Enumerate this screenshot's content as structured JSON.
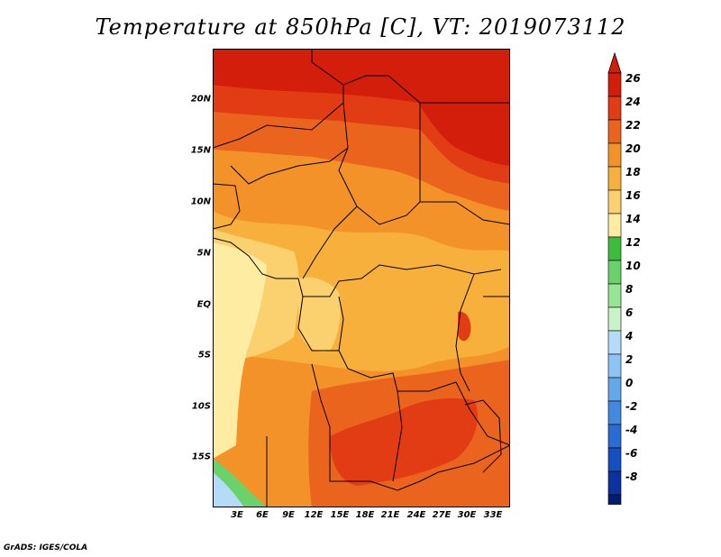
{
  "title": "Temperature at 850hPa [C], VT: 2019073112",
  "credit": "GrADS: IGES/COLA",
  "latitude_labels": [
    "20N",
    "15N",
    "10N",
    "5N",
    "EQ",
    "5S",
    "10S",
    "15S"
  ],
  "longitude_labels": [
    "3E",
    "6E",
    "9E",
    "12E",
    "15E",
    "18E",
    "21E",
    "24E",
    "27E",
    "30E",
    "33E"
  ],
  "colorbar": {
    "labels": [
      "26",
      "24",
      "22",
      "20",
      "18",
      "16",
      "14",
      "12",
      "10",
      "8",
      "6",
      "4",
      "2",
      "0",
      "-2",
      "-4",
      "-6",
      "-8"
    ],
    "colors": [
      "#d21e0a",
      "#e13c14",
      "#eb641e",
      "#f4922a",
      "#f8b03c",
      "#fbd06e",
      "#fdeca2",
      "#3cbc3c",
      "#6ad26a",
      "#96e696",
      "#c8f2c8",
      "#b4dcf8",
      "#8cc4f4",
      "#64a8ec",
      "#428ae0",
      "#286cd4",
      "#1450c0",
      "#0a32a0",
      "#041c6e"
    ],
    "top_triangle_color": "#d21e0a",
    "bottom_triangle_color": "#e6e6ff"
  },
  "map_colors": {
    "c26": "#d21e0a",
    "c24": "#e13c14",
    "c22": "#eb641e",
    "c20": "#f4922a",
    "c18": "#f8b03c",
    "c16": "#fbd06e",
    "c14": "#fdeca2",
    "g12": "#3cbc3c",
    "g10": "#6ad26a",
    "b6": "#b4dcf8"
  }
}
